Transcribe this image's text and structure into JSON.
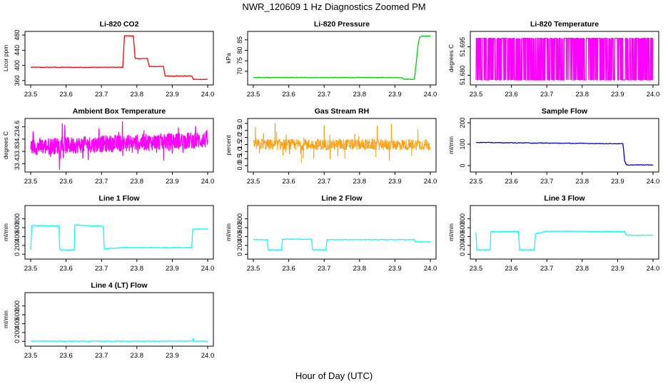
{
  "figure": {
    "title": "NWR_120609  1 Hz Diagnostics Zoomed PM",
    "xlabel": "Hour of Day (UTC)"
  },
  "chart_data": [
    {
      "type": "line",
      "title": "Li-820 CO2",
      "ylabel": "Licor ppm",
      "color": "#ff0000",
      "xlim": [
        23.5,
        24.0
      ],
      "xticks": [
        "23.5",
        "23.6",
        "23.7",
        "23.8",
        "23.9",
        "24.0"
      ],
      "ylim": [
        354,
        484
      ],
      "yticks": [
        "360",
        "400",
        "440",
        "480"
      ],
      "series": [
        {
          "x": [
            23.5,
            23.76,
            23.765,
            23.79,
            23.795,
            23.83,
            23.835,
            23.875,
            23.88,
            23.955,
            23.96,
            23.975,
            24.0
          ],
          "y": [
            395,
            395,
            478,
            478,
            418,
            418,
            397,
            397,
            372,
            372,
            363,
            363,
            363
          ]
        }
      ]
    },
    {
      "type": "line",
      "title": "Li-820 Pressure",
      "ylabel": "kPa",
      "color": "#00cc00",
      "xlim": [
        23.5,
        24.0
      ],
      "xticks": [
        "23.5",
        "23.6",
        "23.7",
        "23.8",
        "23.9",
        "24.0"
      ],
      "ylim": [
        64.5,
        88
      ],
      "yticks": [
        "70",
        "75",
        "80",
        "85"
      ],
      "series": [
        {
          "x": [
            23.5,
            23.92,
            23.925,
            23.955,
            23.96,
            23.965,
            23.97,
            23.975,
            24.0
          ],
          "y": [
            67.0,
            67.0,
            66.2,
            66.2,
            74,
            82,
            86.5,
            86.8,
            86.8
          ]
        }
      ]
    },
    {
      "type": "line",
      "title": "Li-820 Temperature",
      "ylabel": "degrees C",
      "color": "#ff00ff",
      "xlim": [
        23.5,
        24.0
      ],
      "xticks": [
        "23.5",
        "23.6",
        "23.7",
        "23.8",
        "23.9",
        "24.0"
      ],
      "ylim": [
        51.676,
        51.702
      ],
      "yticks": [
        "51.680",
        "51.695"
      ],
      "series": [
        {
          "x": [],
          "y": [],
          "note": ""
        }
      ]
    },
    {
      "type": "line",
      "title": "Ambient Box Temperature",
      "ylabel": "degrees C",
      "color": "#ff00ff",
      "xlim": [
        23.5,
        24.0
      ],
      "xticks": [
        "23.5",
        "23.6",
        "23.7",
        "23.8",
        "23.9",
        "24.0"
      ],
      "ylim": [
        33.2,
        34.8
      ],
      "yticks": [
        "33.4",
        "33.8",
        "34.2",
        "34.6"
      ],
      "series": [
        {
          "x": [],
          "y": []
        }
      ]
    },
    {
      "type": "line",
      "title": "Gas Stream RH",
      "ylabel": "percent",
      "color": "#ff9900",
      "xlim": [
        23.5,
        24.0
      ],
      "xticks": [
        "23.5",
        "23.6",
        "23.7",
        "23.8",
        "23.9",
        "24.0"
      ],
      "ylim": [
        -0.3,
        3.2
      ],
      "yticks": [
        "0.0",
        "0.5",
        "1.0",
        "1.5",
        "2.0",
        "2.5",
        "3.0"
      ],
      "series": [
        {
          "x": [],
          "y": []
        }
      ]
    },
    {
      "type": "line",
      "title": "Sample Flow",
      "ylabel": "ml/min",
      "color": "#0000cc",
      "xlim": [
        23.5,
        24.0
      ],
      "xticks": [
        "23.5",
        "23.6",
        "23.7",
        "23.8",
        "23.9",
        "24.0"
      ],
      "ylim": [
        -20,
        210
      ],
      "yticks": [
        "0",
        "100",
        "200"
      ],
      "series": [
        {
          "x": [
            23.5,
            23.915,
            23.92,
            23.925,
            24.0
          ],
          "y": [
            108,
            102,
            20,
            3,
            3
          ]
        }
      ]
    },
    {
      "type": "line",
      "title": "Line 1 Flow",
      "ylabel": "ml/min",
      "color": "#00ffff",
      "xlim": [
        23.5,
        24.0
      ],
      "xticks": [
        "23.5",
        "23.6",
        "23.7",
        "23.8",
        "23.9",
        "24.0"
      ],
      "ylim": [
        -60,
        1050
      ],
      "yticks": [
        "0",
        "200",
        "400",
        "600",
        "800"
      ],
      "series": [
        {
          "x": [
            23.5,
            23.503,
            23.58,
            23.582,
            23.623,
            23.625,
            23.705,
            23.708,
            23.755,
            23.955,
            23.958,
            24.0
          ],
          "y": [
            100,
            650,
            640,
            100,
            100,
            660,
            630,
            120,
            150,
            150,
            570,
            570
          ]
        }
      ]
    },
    {
      "type": "line",
      "title": "Line 2 Flow",
      "ylabel": "ml/min",
      "color": "#00ffff",
      "xlim": [
        23.5,
        24.0
      ],
      "xticks": [
        "23.5",
        "23.6",
        "23.7",
        "23.8",
        "23.9",
        "24.0"
      ],
      "ylim": [
        -60,
        1050
      ],
      "yticks": [
        "0",
        "200",
        "400",
        "600",
        "800"
      ],
      "series": [
        {
          "x": [
            23.5,
            23.54,
            23.542,
            23.58,
            23.582,
            23.665,
            23.667,
            23.705,
            23.708,
            23.955,
            23.958,
            24.0
          ],
          "y": [
            330,
            330,
            100,
            100,
            340,
            340,
            100,
            100,
            330,
            330,
            280,
            280
          ]
        }
      ]
    },
    {
      "type": "line",
      "title": "Line 3 Flow",
      "ylabel": "ml/min",
      "color": "#00ffff",
      "xlim": [
        23.5,
        24.0
      ],
      "xticks": [
        "23.5",
        "23.6",
        "23.7",
        "23.8",
        "23.9",
        "24.0"
      ],
      "ylim": [
        -60,
        1050
      ],
      "yticks": [
        "0",
        "200",
        "400",
        "600",
        "800"
      ],
      "series": [
        {
          "x": [
            23.5,
            23.502,
            23.505,
            23.54,
            23.542,
            23.62,
            23.623,
            23.665,
            23.668,
            23.7,
            23.92,
            23.925,
            24.0
          ],
          "y": [
            500,
            100,
            100,
            100,
            510,
            510,
            100,
            100,
            460,
            520,
            510,
            430,
            430
          ]
        }
      ]
    },
    {
      "type": "line",
      "title": "Line 4 (LT) Flow",
      "ylabel": "ml/min",
      "color": "#00ffff",
      "xlim": [
        23.5,
        24.0
      ],
      "xticks": [
        "23.5",
        "23.6",
        "23.7",
        "23.8",
        "23.9",
        "24.0"
      ],
      "ylim": [
        -60,
        1050
      ],
      "yticks": [
        "0",
        "200",
        "400",
        "600",
        "800"
      ],
      "series": [
        {
          "x": [
            23.5,
            23.958,
            23.959,
            23.96,
            24.0
          ],
          "y": [
            5,
            5,
            80,
            5,
            5
          ]
        }
      ]
    }
  ]
}
